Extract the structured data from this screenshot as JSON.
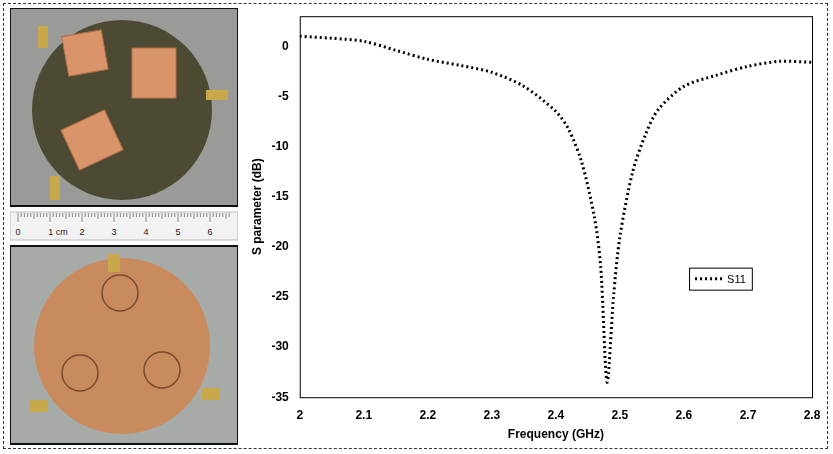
{
  "chart_data": {
    "type": "line",
    "x_label": "Frequency (GHz)",
    "y_label": "S parameter (dB)",
    "x": [
      2.0,
      2.05,
      2.1,
      2.15,
      2.2,
      2.25,
      2.3,
      2.35,
      2.4,
      2.42,
      2.44,
      2.46,
      2.47,
      2.48,
      2.49,
      2.5,
      2.52,
      2.54,
      2.56,
      2.6,
      2.65,
      2.7,
      2.75,
      2.8
    ],
    "series": [
      {
        "name": "S11",
        "color": "#000000",
        "line_style": "dotted",
        "values": [
          1.0,
          0.8,
          0.5,
          -0.4,
          -1.3,
          -1.9,
          -2.6,
          -4.0,
          -6.5,
          -8.3,
          -11.5,
          -17,
          -22,
          -33.5,
          -25,
          -19,
          -12.5,
          -8.8,
          -6.3,
          -4.0,
          -2.9,
          -2.0,
          -1.5,
          -1.6
        ]
      }
    ],
    "xlim": [
      2,
      2.8
    ],
    "xticks": [
      2,
      2.1,
      2.2,
      2.3,
      2.4,
      2.5,
      2.6,
      2.7,
      2.8
    ],
    "ylim": [
      -35,
      3
    ],
    "yticks": [
      -35,
      -30,
      -25,
      -20,
      -15,
      -10,
      -5,
      0
    ],
    "grid": false,
    "legend": "right"
  },
  "photos": {
    "ruler_labels": [
      "0",
      "1 cm",
      "2",
      "3",
      "4",
      "5",
      "6"
    ]
  }
}
